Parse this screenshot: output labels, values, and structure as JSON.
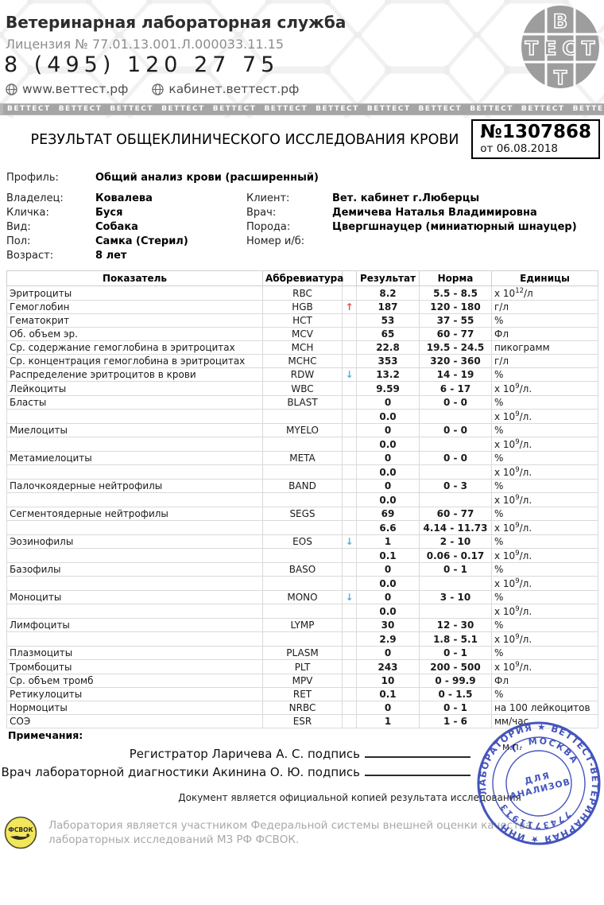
{
  "header": {
    "org_name": "Ветеринарная лабораторная служба",
    "license": "Лицензия № 77.01.13.001.Л.000033.11.15",
    "phone": "8 (495) 120 27 75",
    "site1": "www.веттест.рф",
    "site2": "кабинет.веттест.рф",
    "logo": {
      "top": "В",
      "middle": "ТЕСТ",
      "bottom": "Т"
    },
    "banner_word": "ВЕТТЕСТ",
    "banner_repeat": 12
  },
  "report": {
    "title": "РЕЗУЛЬТАТ ОБЩЕКЛИНИЧЕСКОГО ИССЛЕДОВАНИЯ КРОВИ",
    "number": "№1307868",
    "date_line": "от 06.08.2018"
  },
  "info": {
    "profile_label": "Профиль:",
    "profile_value": "Общий анализ крови (расширенный)",
    "left": [
      {
        "label": "Владелец:",
        "value": "Ковалева"
      },
      {
        "label": "Кличка:",
        "value": "Буся"
      },
      {
        "label": "Вид:",
        "value": "Собака"
      },
      {
        "label": "Пол:",
        "value": "Самка (Стерил)"
      },
      {
        "label": "Возраст:",
        "value": "8 лет"
      }
    ],
    "right": [
      {
        "label": "Клиент:",
        "value": "Вет. кабинет г.Люберцы"
      },
      {
        "label": "Врач:",
        "value": "Демичева Наталья Владимировна"
      },
      {
        "label": "Порода:",
        "value": "Цвергшнауцер (миниатюрный шнауцер)"
      },
      {
        "label": "Номер и/б:",
        "value": ""
      }
    ]
  },
  "table": {
    "headers": [
      "Показатель",
      "Аббревиатура",
      "",
      "Результат",
      "Норма",
      "Единицы"
    ],
    "rows": [
      {
        "name": "Эритроциты",
        "abbr": "RBC",
        "arrow": "",
        "result": "8.2",
        "norm": "5.5 - 8.5",
        "unit": "х 10^12^/л",
        "sub": false
      },
      {
        "name": "Гемоглобин",
        "abbr": "HGB",
        "arrow": "up",
        "result": "187",
        "norm": "120 - 180",
        "unit": "г/л",
        "sub": false
      },
      {
        "name": "Гематокрит",
        "abbr": "HCT",
        "arrow": "",
        "result": "53",
        "norm": "37 - 55",
        "unit": "%",
        "sub": false
      },
      {
        "name": "Об. объем эр.",
        "abbr": "MCV",
        "arrow": "",
        "result": "65",
        "norm": "60 - 77",
        "unit": "Фл",
        "sub": false
      },
      {
        "name": "Ср. содержание гемоглобина в эритроцитах",
        "abbr": "MCH",
        "arrow": "",
        "result": "22.8",
        "norm": "19.5 - 24.5",
        "unit": "пикограмм",
        "sub": false
      },
      {
        "name": "Ср. концентрация гемоглобина в эритроцитах",
        "abbr": "MCHC",
        "arrow": "",
        "result": "353",
        "norm": "320 - 360",
        "unit": "г/л",
        "sub": false
      },
      {
        "name": "Распределение эритроцитов в крови",
        "abbr": "RDW",
        "arrow": "down",
        "result": "13.2",
        "norm": "14 - 19",
        "unit": "%",
        "sub": false
      },
      {
        "name": "Лейкоциты",
        "abbr": "WBC",
        "arrow": "",
        "result": "9.59",
        "norm": "6 - 17",
        "unit": "х 10^9^/л.",
        "sub": false
      },
      {
        "name": "Бласты",
        "abbr": "BLAST",
        "arrow": "",
        "result": "0",
        "norm": "0 - 0",
        "unit": "%",
        "sub": false
      },
      {
        "name": "",
        "abbr": "",
        "arrow": "",
        "result": "0.0",
        "norm": "",
        "unit": "х 10^9^/л.",
        "sub": true
      },
      {
        "name": "Миелоциты",
        "abbr": "MYELO",
        "arrow": "",
        "result": "0",
        "norm": "0 - 0",
        "unit": "%",
        "sub": false
      },
      {
        "name": "",
        "abbr": "",
        "arrow": "",
        "result": "0.0",
        "norm": "",
        "unit": "х 10^9^/л.",
        "sub": true
      },
      {
        "name": "Метамиелоциты",
        "abbr": "META",
        "arrow": "",
        "result": "0",
        "norm": "0 - 0",
        "unit": "%",
        "sub": false
      },
      {
        "name": "",
        "abbr": "",
        "arrow": "",
        "result": "0.0",
        "norm": "",
        "unit": "х 10^9^/л.",
        "sub": true
      },
      {
        "name": "Палочкоядерные нейтрофилы",
        "abbr": "BAND",
        "arrow": "",
        "result": "0",
        "norm": "0 - 3",
        "unit": "%",
        "sub": false
      },
      {
        "name": "",
        "abbr": "",
        "arrow": "",
        "result": "0.0",
        "norm": "",
        "unit": "х 10^9^/л.",
        "sub": true
      },
      {
        "name": "Сегментоядерные нейтрофилы",
        "abbr": "SEGS",
        "arrow": "",
        "result": "69",
        "norm": "60 - 77",
        "unit": "%",
        "sub": false
      },
      {
        "name": "",
        "abbr": "",
        "arrow": "",
        "result": "6.6",
        "norm": "4.14 - 11.73",
        "unit": "х 10^9^/л.",
        "sub": true
      },
      {
        "name": "Эозинофилы",
        "abbr": "EOS",
        "arrow": "down",
        "result": "1",
        "norm": "2 - 10",
        "unit": "%",
        "sub": false
      },
      {
        "name": "",
        "abbr": "",
        "arrow": "",
        "result": "0.1",
        "norm": "0.06 - 0.17",
        "unit": "х 10^9^/л.",
        "sub": true
      },
      {
        "name": "Базофилы",
        "abbr": "BASO",
        "arrow": "",
        "result": "0",
        "norm": "0 - 1",
        "unit": "%",
        "sub": false
      },
      {
        "name": "",
        "abbr": "",
        "arrow": "",
        "result": "0.0",
        "norm": "",
        "unit": "х 10^9^/л.",
        "sub": true
      },
      {
        "name": "Моноциты",
        "abbr": "MONO",
        "arrow": "down",
        "result": "0",
        "norm": "3 - 10",
        "unit": "%",
        "sub": false
      },
      {
        "name": "",
        "abbr": "",
        "arrow": "",
        "result": "0.0",
        "norm": "",
        "unit": "х 10^9^/л.",
        "sub": true
      },
      {
        "name": "Лимфоциты",
        "abbr": "LYMP",
        "arrow": "",
        "result": "30",
        "norm": "12 - 30",
        "unit": "%",
        "sub": false
      },
      {
        "name": "",
        "abbr": "",
        "arrow": "",
        "result": "2.9",
        "norm": "1.8 - 5.1",
        "unit": "х 10^9^/л.",
        "sub": true
      },
      {
        "name": "Плазмоциты",
        "abbr": "PLASM",
        "arrow": "",
        "result": "0",
        "norm": "0 - 1",
        "unit": "%",
        "sub": false
      },
      {
        "name": "Тромбоциты",
        "abbr": "PLT",
        "arrow": "",
        "result": "243",
        "norm": "200 - 500",
        "unit": "х 10^9^/л.",
        "sub": false
      },
      {
        "name": "Ср. объем тромб",
        "abbr": "MPV",
        "arrow": "",
        "result": "10",
        "norm": "0 - 99.9",
        "unit": "Фл",
        "sub": false
      },
      {
        "name": "Ретикулоциты",
        "abbr": "RET",
        "arrow": "",
        "result": "0.1",
        "norm": "0 - 1.5",
        "unit": "%",
        "sub": false
      },
      {
        "name": "Нормоциты",
        "abbr": "NRBC",
        "arrow": "",
        "result": "0",
        "norm": "0 - 1",
        "unit": "на 100 лейкоцитов",
        "sub": false
      },
      {
        "name": "СОЭ",
        "abbr": "ESR",
        "arrow": "",
        "result": "1",
        "norm": "1 - 6",
        "unit": "мм/час",
        "sub": false
      }
    ]
  },
  "notes_label": "Примечания:",
  "signatures": {
    "line1": "Регистратор Ларичева А. С. подпись",
    "line2": "Врач лабораторной диагностики Акинина О. Ю. подпись",
    "mp": "м.п."
  },
  "footer": {
    "official_copy": "Документ является официальной копией результата исследования",
    "fsvok_line1": "Лаборатория является участником Федеральной системы внешней оценки качества",
    "fsvok_line2": "лабораторных исследований МЗ РФ ФСВОК.",
    "fsvok_logo": "ФСВОК"
  },
  "stamp": {
    "ring_text": "ЛАБОРАТОРИЯ ★ ВЕТТЕСТ-ВЕТЕРИНАРНАЯ ★ ИНН",
    "city": "Г. МОСКВА",
    "inn": "7743711913",
    "center1": "ДЛЯ",
    "center2": "АНАЛИЗОВ"
  },
  "colors": {
    "arrow_up": "#d9534f",
    "arrow_down": "#58aee0",
    "stamp_blue": "#3647b8",
    "banner_gray": "#b6b6b6",
    "fsvok_yellow": "#f2e65c"
  }
}
